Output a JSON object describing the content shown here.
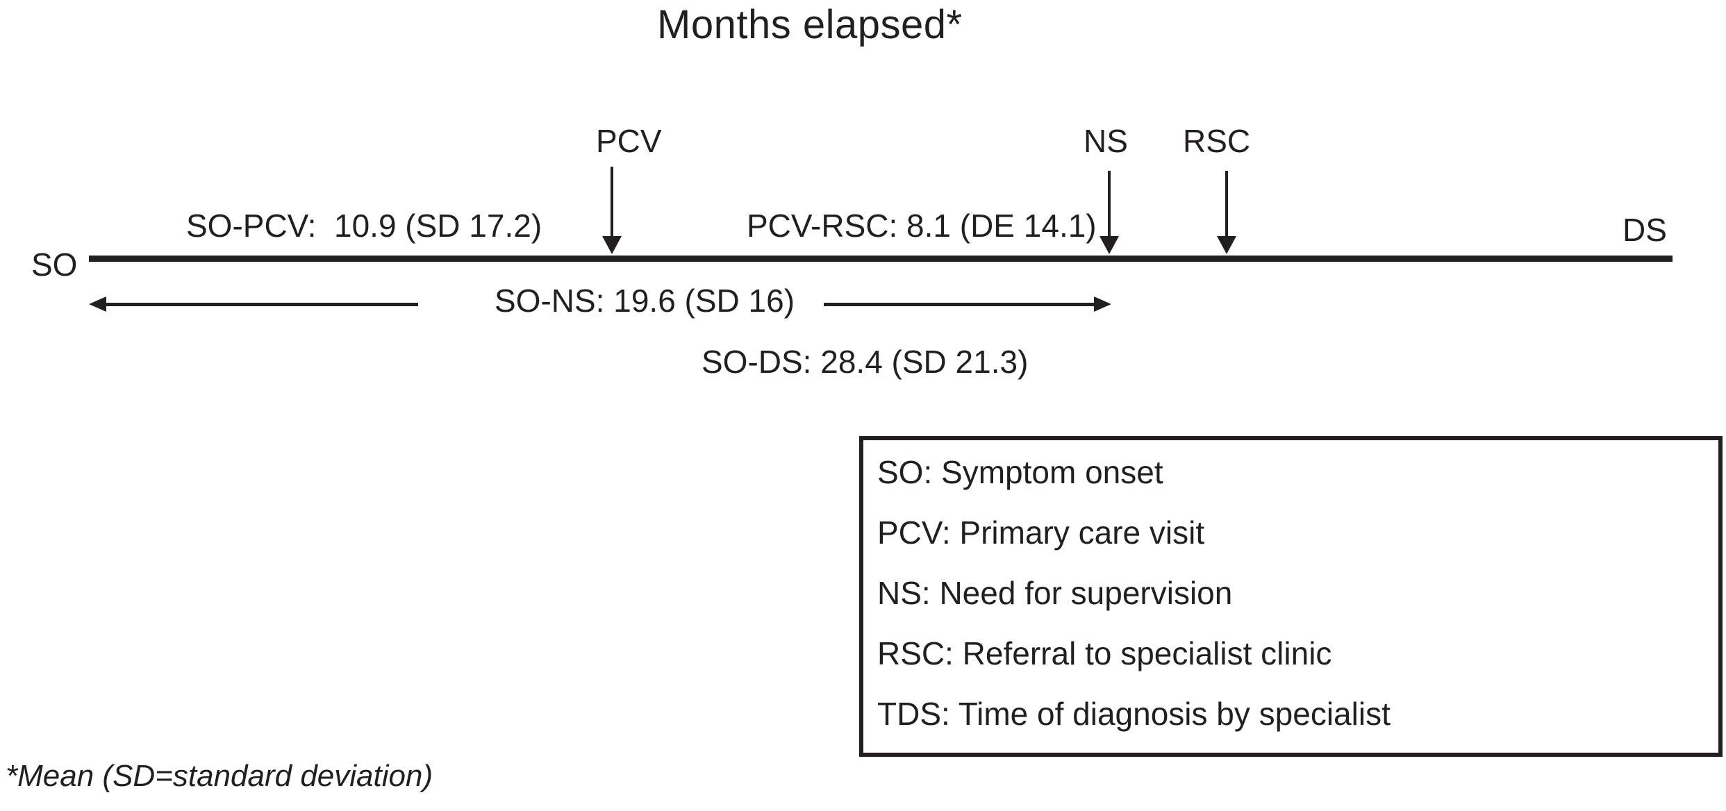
{
  "title": "Months elapsed*",
  "colors": {
    "ink": "#231f20",
    "background": "#ffffff"
  },
  "timeline": {
    "start_label": "SO",
    "end_label": "DS",
    "events": [
      {
        "id": "pcv",
        "label": "PCV"
      },
      {
        "id": "ns",
        "label": "NS"
      },
      {
        "id": "rsc",
        "label": "RSC"
      }
    ],
    "intervals_above": [
      {
        "label": "SO-PCV:  10.9 (SD 17.2)",
        "from": "SO",
        "to": "PCV",
        "mean_months": 10.9,
        "sd": 17.2
      },
      {
        "label": "PCV-RSC: 8.1 (DE 14.1)",
        "from": "PCV",
        "to": "RSC",
        "mean_months": 8.1,
        "sd": 14.1
      }
    ],
    "spans_below": [
      {
        "label": "SO-NS: 19.6 (SD 16)",
        "from": "SO",
        "to": "NS",
        "mean_months": 19.6,
        "sd": 16
      },
      {
        "label": "SO-DS: 28.4 (SD 21.3)",
        "from": "SO",
        "to": "DS",
        "mean_months": 28.4,
        "sd": 21.3
      }
    ]
  },
  "legend": {
    "items": [
      "SO: Symptom onset",
      "PCV: Primary care visit",
      "NS: Need for supervision",
      "RSC: Referral to specialist clinic",
      "TDS: Time of diagnosis by specialist"
    ]
  },
  "footnote": {
    "text": "*Mean (SD=standard deviation)"
  }
}
